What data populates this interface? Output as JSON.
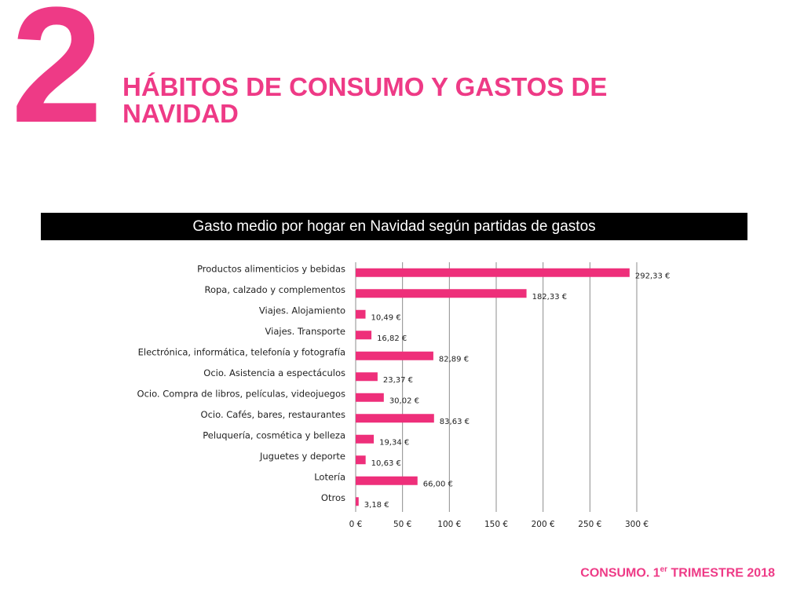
{
  "header": {
    "section_number": "2",
    "title": "HÁBITOS DE CONSUMO Y GASTOS DE NAVIDAD"
  },
  "chart_data": {
    "type": "bar",
    "orientation": "horizontal",
    "title": "Gasto medio por hogar en Navidad según partidas de gastos",
    "categories": [
      "Productos alimenticios y bebidas",
      "Ropa, calzado y complementos",
      "Viajes. Alojamiento",
      "Viajes. Transporte",
      "Electrónica, informática, telefonía y fotografía",
      "Ocio. Asistencia a espectáculos",
      "Ocio. Compra de libros, películas, videojuegos",
      "Ocio. Cafés, bares, restaurantes",
      "Peluquería, cosmética y belleza",
      "Juguetes y deporte",
      "Lotería",
      "Otros"
    ],
    "values": [
      292.33,
      182.33,
      10.49,
      16.82,
      82.89,
      23.37,
      30.02,
      83.63,
      19.34,
      10.63,
      66.0,
      3.18
    ],
    "value_labels": [
      "292,33 €",
      "182,33 €",
      "10,49 €",
      "16,82 €",
      "82,89 €",
      "23,37 €",
      "30,02 €",
      "83,63 €",
      "19,34 €",
      "10,63 €",
      "66,00 €",
      "3,18 €"
    ],
    "xlim": [
      0,
      300
    ],
    "xticks": [
      0,
      50,
      100,
      150,
      200,
      250,
      300
    ],
    "xtick_labels": [
      "0 €",
      "50 €",
      "100 €",
      "150 €",
      "200 €",
      "250 €",
      "300 €"
    ],
    "grid": "vertical",
    "legend": "none",
    "bar_color": "#ee2f7a",
    "grid_color": "#8c8c8c"
  },
  "footer": {
    "text_main": "CONSUMO. 1",
    "text_sup": "er",
    "text_end": " TRIMESTRE 2018"
  },
  "colors": {
    "accent": "#ee3a86",
    "banner_bg": "#000000",
    "banner_text": "#ffffff"
  }
}
